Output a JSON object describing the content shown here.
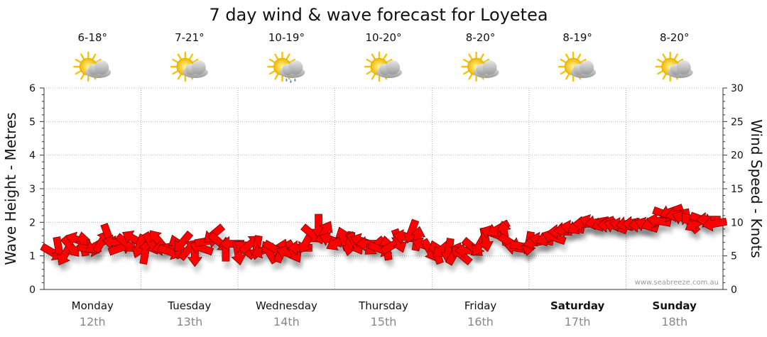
{
  "chart_data": {
    "type": "line",
    "title": "7 day wind & wave forecast for Loyetea",
    "ylabel_left": "Wave Height - Metres",
    "ylabel_right": "Wind Speed - Knots",
    "ylim_left": [
      0,
      6
    ],
    "ylim_right": [
      0,
      30
    ],
    "yticks_left": [
      "0",
      "1",
      "2",
      "3",
      "4",
      "5",
      "6"
    ],
    "yticks_right": [
      "0",
      "5",
      "10",
      "15",
      "20",
      "25",
      "30"
    ],
    "watermark": "www.seabreeze.com.au",
    "days": [
      {
        "name": "Monday",
        "date": "12th",
        "temp": "6-18°",
        "icon": "partly-cloudy-icon",
        "bold": false
      },
      {
        "name": "Tuesday",
        "date": "13th",
        "temp": "7-21°",
        "icon": "partly-cloudy-icon",
        "bold": false
      },
      {
        "name": "Wednesday",
        "date": "14th",
        "temp": "10-19°",
        "icon": "cloud-rain-sun-icon",
        "bold": false
      },
      {
        "name": "Thursday",
        "date": "15th",
        "temp": "10-20°",
        "icon": "partly-cloudy-icon",
        "bold": false
      },
      {
        "name": "Friday",
        "date": "16th",
        "temp": "8-20°",
        "icon": "partly-cloudy-icon",
        "bold": false
      },
      {
        "name": "Saturday",
        "date": "17th",
        "temp": "8-19°",
        "icon": "partly-cloudy-icon",
        "bold": true
      },
      {
        "name": "Sunday",
        "date": "18th",
        "temp": "8-20°",
        "icon": "partly-cloudy-icon",
        "bold": true
      }
    ],
    "wind_series": {
      "name": "Wind speed (knots) with direction arrows",
      "color": "#ff0000",
      "speeds": [
        5.5,
        6.0,
        5.2,
        6.3,
        7.4,
        6.8,
        6.0,
        6.5,
        7.2,
        8.0,
        7.0,
        6.2,
        6.8,
        7.6,
        6.4,
        5.6,
        6.8,
        7.4,
        6.2,
        5.6,
        6.4,
        7.0,
        6.0,
        5.2,
        6.2,
        7.2,
        8.2,
        7.0,
        6.0,
        6.8,
        5.4,
        6.0,
        6.8,
        6.2,
        5.8,
        5.6,
        6.0,
        5.8,
        5.4,
        5.6,
        6.2,
        7.0,
        8.2,
        9.4,
        8.6,
        7.4,
        7.0,
        7.6,
        6.8,
        6.8,
        7.2,
        6.8,
        6.4,
        6.0,
        6.2,
        6.6,
        7.2,
        7.8,
        8.6,
        7.6,
        6.6,
        5.8,
        5.6,
        6.0,
        5.8,
        5.4,
        5.2,
        5.8,
        6.2,
        6.6,
        7.4,
        8.4,
        9.0,
        8.4,
        7.0,
        6.2,
        6.4,
        6.8,
        7.0,
        7.4,
        7.6,
        7.8,
        8.6,
        9.0,
        9.2,
        9.4,
        9.8,
        10.0,
        10.0,
        9.8,
        9.6,
        9.4,
        9.6,
        9.8,
        9.8,
        9.6,
        9.6,
        9.8,
        10.2,
        11.2,
        11.6,
        11.2,
        10.6,
        10.0,
        9.8,
        10.4,
        10.4,
        9.8
      ],
      "directions_deg": [
        30,
        80,
        120,
        50,
        200,
        260,
        10,
        150,
        300,
        70,
        190,
        340,
        40,
        210,
        110,
        280,
        60,
        230,
        170,
        20,
        250,
        130,
        310,
        90,
        200,
        350,
        140,
        40,
        270,
        180,
        80,
        220,
        320,
        100,
        160,
        240,
        30,
        290,
        200,
        60,
        180,
        120,
        40,
        90,
        300,
        200,
        150,
        250,
        100,
        60,
        200,
        180,
        140,
        20,
        260,
        330,
        70,
        190,
        110,
        280,
        200,
        60,
        250,
        140,
        100,
        300,
        220,
        180,
        40,
        120,
        80,
        200,
        150,
        260,
        30,
        190,
        10,
        100,
        170,
        190,
        160,
        200,
        180,
        170,
        190,
        150,
        180,
        200,
        170,
        160,
        180,
        200,
        190,
        170,
        180,
        180,
        200,
        160,
        190,
        20,
        160,
        170,
        200,
        230,
        150,
        20,
        180,
        170
      ]
    }
  }
}
